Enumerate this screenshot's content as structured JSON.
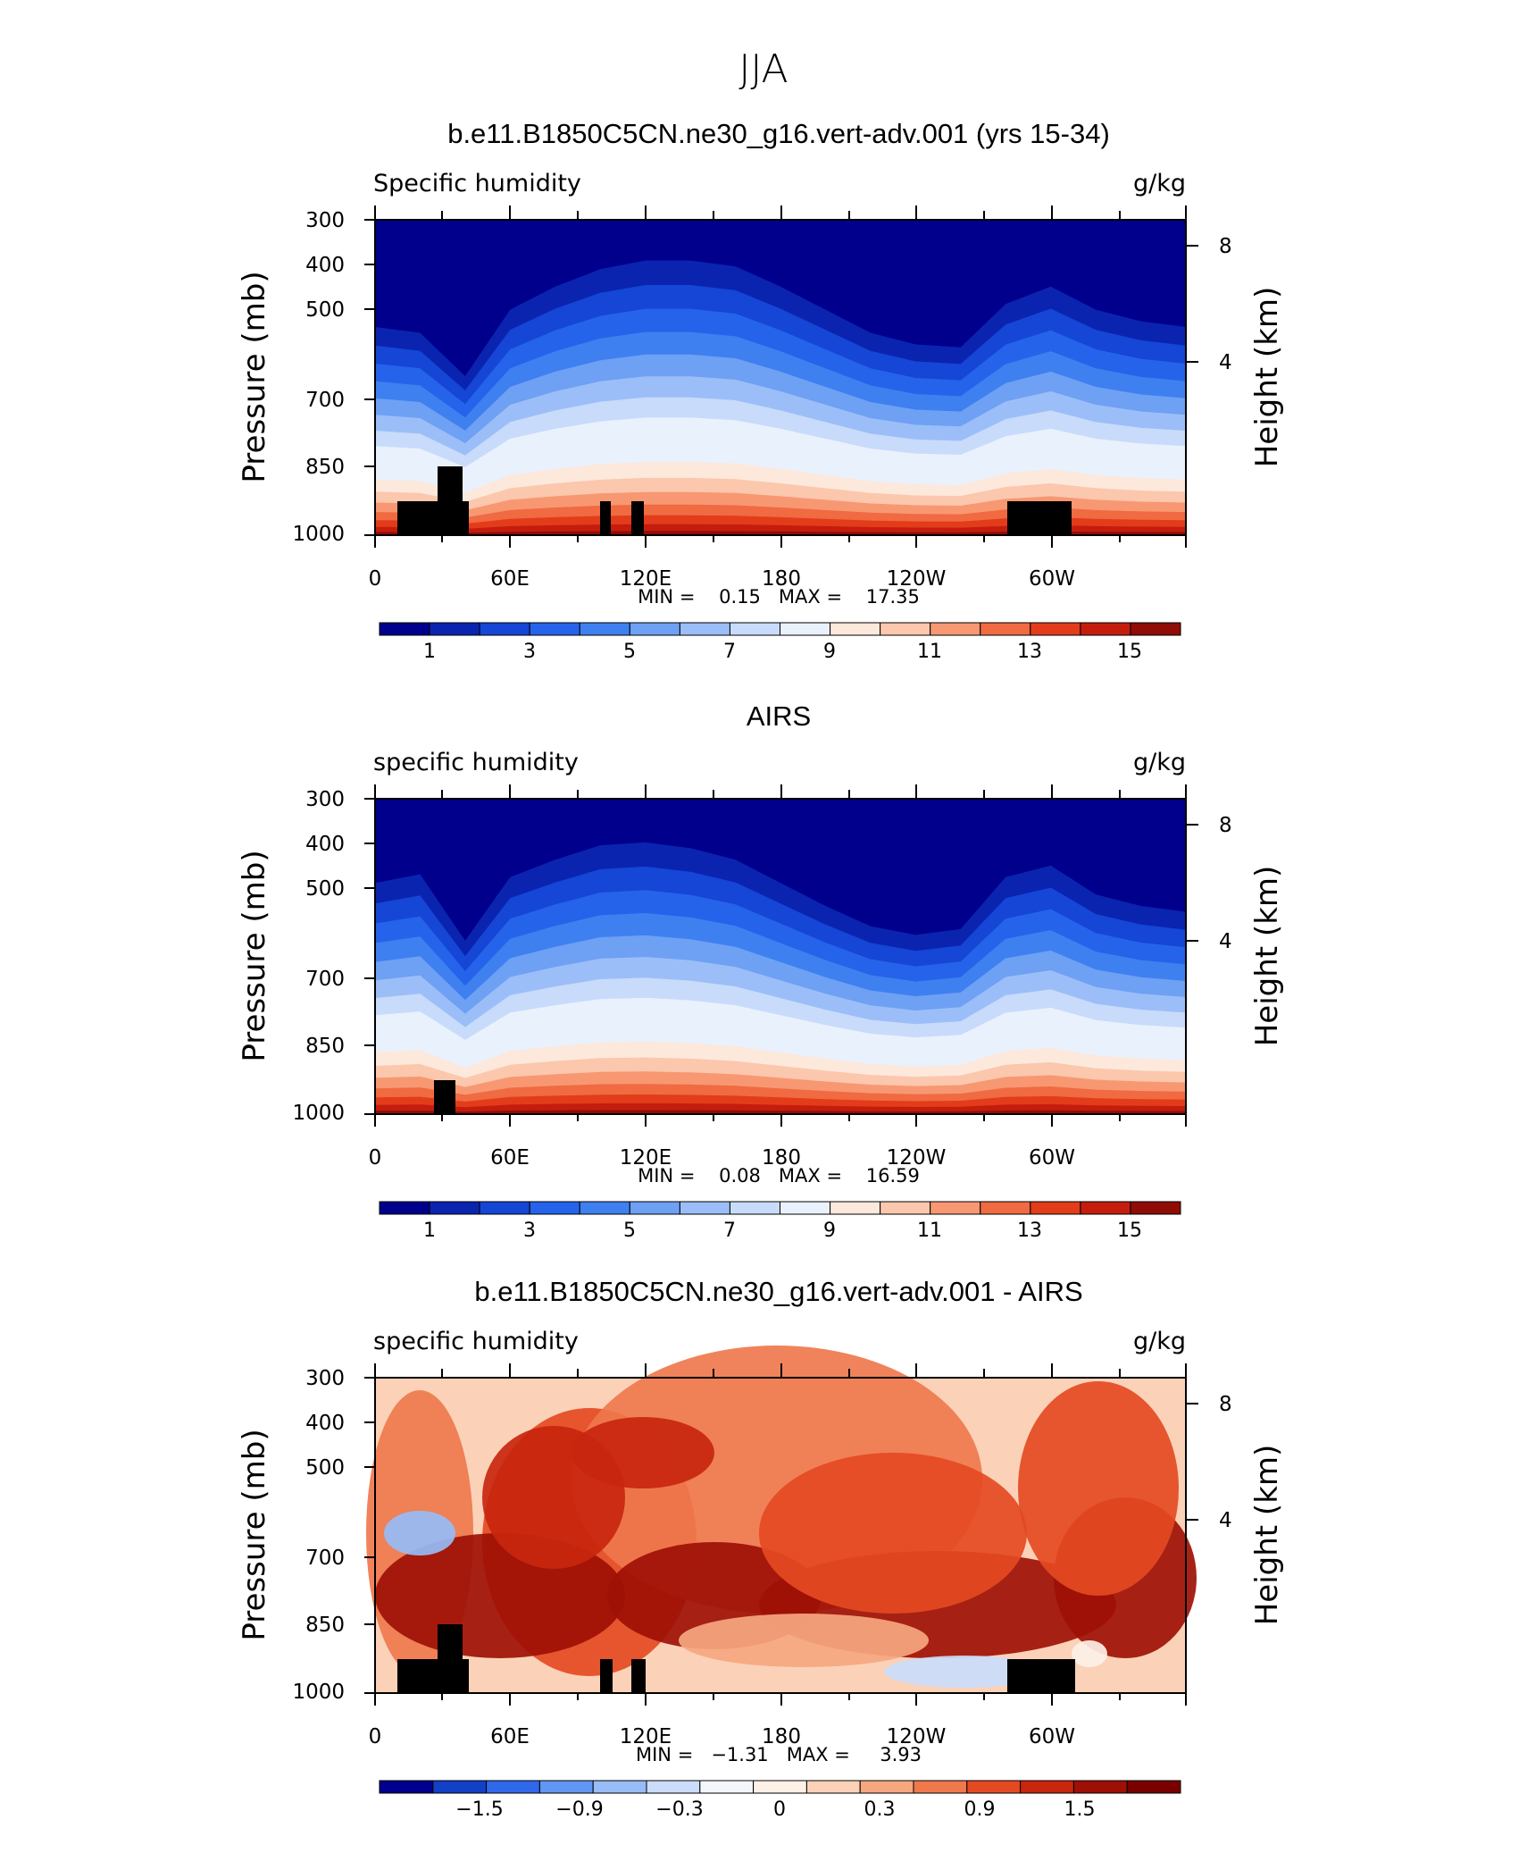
{
  "title": "JJA",
  "colors": {
    "seq_palette": [
      "#00008c",
      "#0a24b0",
      "#1546d6",
      "#2563ea",
      "#3e80f0",
      "#6ea0f4",
      "#9cbef8",
      "#c8dbfb",
      "#e9f1fd",
      "#fde8dc",
      "#fbc7ad",
      "#f79873",
      "#f06a42",
      "#e23c1b",
      "#c41d0e",
      "#8f0d06",
      "#7a0000"
    ],
    "diff_palette": [
      "#00008c",
      "#1240c6",
      "#2f68ea",
      "#6196f2",
      "#97bcf6",
      "#cbdcfa",
      "#f3f6fd",
      "#fdf0e6",
      "#fbd2b8",
      "#f6a780",
      "#ef784d",
      "#e44a22",
      "#c8260e",
      "#9e1005",
      "#7a0000"
    ],
    "topography": "#000000"
  },
  "chart_data": [
    {
      "type": "heatmap",
      "id": "model",
      "title": "b.e11.B1850C5CN.ne30_g16.vert-adv.001 (yrs 15-34)",
      "left_label": "Specific humidity",
      "right_label": "g/kg",
      "ylabel": "Pressure (mb)",
      "ylabel_right": "Height (km)",
      "x_ticks": [
        "0",
        "60E",
        "120E",
        "180",
        "120W",
        "60W"
      ],
      "y_ticks": [
        "300",
        "400",
        "500",
        "700",
        "850",
        "1000"
      ],
      "y_ticks_right": [
        "8",
        "4"
      ],
      "minmax": "MIN =    0.15   MAX =    17.35",
      "min": 0.15,
      "max": 17.35,
      "colorbar": {
        "labels": [
          "1",
          "3",
          "5",
          "7",
          "9",
          "11",
          "13",
          "15"
        ],
        "levels": [
          0,
          1,
          2,
          3,
          4,
          5,
          6,
          7,
          8,
          9,
          10,
          11,
          12,
          13,
          14,
          15,
          16
        ]
      }
    },
    {
      "type": "heatmap",
      "id": "obs",
      "title": "AIRS",
      "left_label": "specific humidity",
      "right_label": "g/kg",
      "ylabel": "Pressure (mb)",
      "ylabel_right": "Height (km)",
      "x_ticks": [
        "0",
        "60E",
        "120E",
        "180",
        "120W",
        "60W"
      ],
      "y_ticks": [
        "300",
        "400",
        "500",
        "700",
        "850",
        "1000"
      ],
      "y_ticks_right": [
        "8",
        "4"
      ],
      "minmax": "MIN =    0.08   MAX =    16.59",
      "min": 0.08,
      "max": 16.59,
      "colorbar": {
        "labels": [
          "1",
          "3",
          "5",
          "7",
          "9",
          "11",
          "13",
          "15"
        ],
        "levels": [
          0,
          1,
          2,
          3,
          4,
          5,
          6,
          7,
          8,
          9,
          10,
          11,
          12,
          13,
          14,
          15,
          16
        ]
      }
    },
    {
      "type": "heatmap",
      "id": "diff",
      "title": "b.e11.B1850C5CN.ne30_g16.vert-adv.001 - AIRS",
      "left_label": "specific humidity",
      "right_label": "g/kg",
      "ylabel": "Pressure (mb)",
      "ylabel_right": "Height (km)",
      "x_ticks": [
        "0",
        "60E",
        "120E",
        "180",
        "120W",
        "60W"
      ],
      "y_ticks": [
        "300",
        "400",
        "500",
        "700",
        "850",
        "1000"
      ],
      "y_ticks_right": [
        "8",
        "4"
      ],
      "minmax": "MIN =   −1.31   MAX =     3.93",
      "min": -1.31,
      "max": 3.93,
      "colorbar": {
        "labels": [
          "−1.5",
          "−0.9",
          "−0.3",
          "0",
          "0.3",
          "0.9",
          "1.5"
        ],
        "levels": [
          -2.1,
          -1.8,
          -1.5,
          -1.2,
          -0.9,
          -0.6,
          -0.3,
          0,
          0.3,
          0.6,
          0.9,
          1.2,
          1.5,
          1.8,
          2.1
        ]
      }
    }
  ]
}
